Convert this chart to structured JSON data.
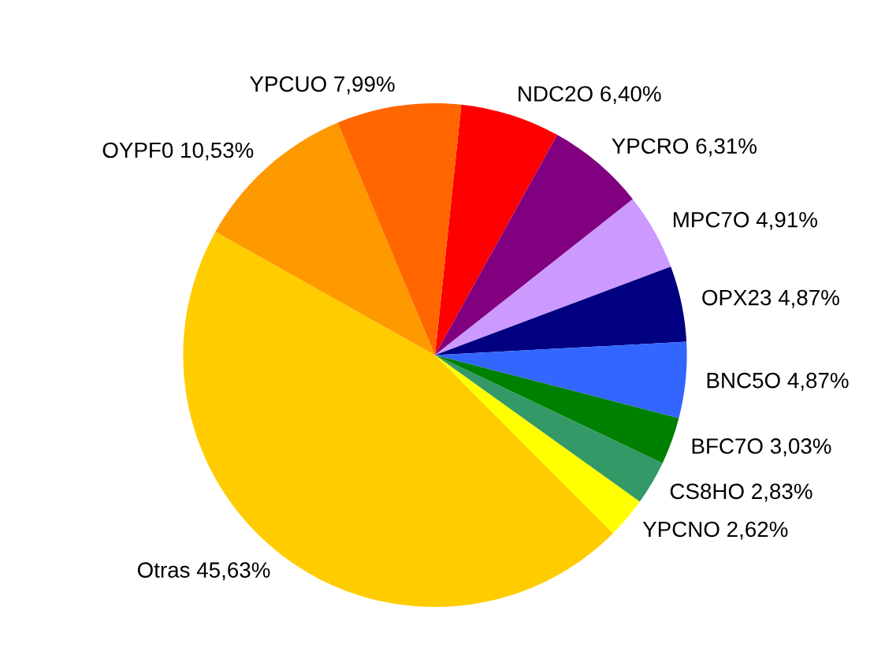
{
  "chart_data": {
    "type": "pie",
    "categories": [
      "NDC2O",
      "YPCRO",
      "MPC7O",
      "OPX23",
      "BNC5O",
      "BFC7O",
      "CS8HO",
      "YPCNO",
      "Otras",
      "OYPF0",
      "YPCUO"
    ],
    "values": [
      6.4,
      6.31,
      4.91,
      4.87,
      4.87,
      3.03,
      2.83,
      2.62,
      45.63,
      10.53,
      7.99
    ],
    "value_labels": [
      "6,40%",
      "6,31%",
      "4,91%",
      "4,87%",
      "4,87%",
      "3,03%",
      "2,83%",
      "2,62%",
      "45,63%",
      "10,53%",
      "7,99%"
    ],
    "colors": [
      "#ff0000",
      "#800080",
      "#cc99ff",
      "#000080",
      "#3366ff",
      "#008000",
      "#339966",
      "#ffff00",
      "#ffcc00",
      "#ff9900",
      "#ff6600"
    ],
    "legend": false
  }
}
